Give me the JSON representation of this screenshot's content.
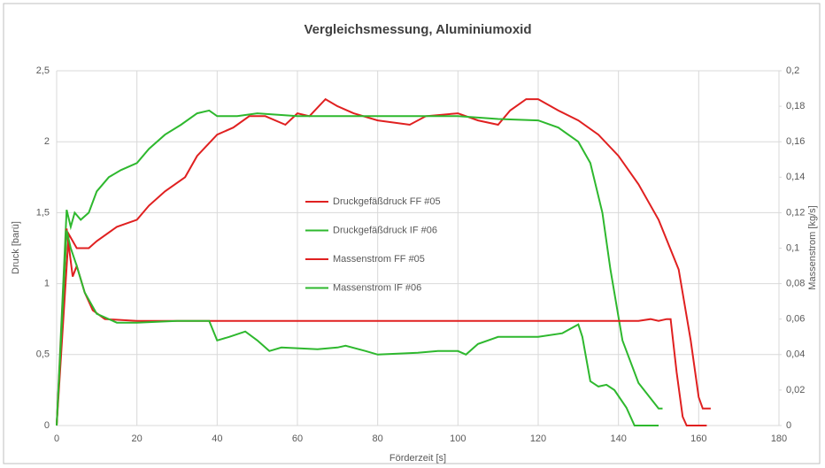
{
  "chart_data": {
    "type": "line",
    "title": "Vergleichsmessung, Aluminiumoxid",
    "xlabel": "Förderzeit [s]",
    "ylabel": "Druck [barü]",
    "y2label": "Massenstrom [kg/s]",
    "xlim": [
      0,
      180
    ],
    "xticks": [
      0,
      20,
      40,
      60,
      80,
      100,
      120,
      140,
      160,
      180
    ],
    "ylim": [
      0,
      2.5
    ],
    "yticks": [
      0,
      {
        "value": 0.5,
        "label": "0,5"
      },
      1,
      {
        "value": 1.5,
        "label": "1,5"
      },
      2,
      {
        "value": 2.5,
        "label": "2,5"
      }
    ],
    "y2lim": [
      0,
      0.2
    ],
    "y2ticks": [
      0,
      {
        "value": 0.02,
        "label": "0,02"
      },
      {
        "value": 0.04,
        "label": "0,04"
      },
      {
        "value": 0.06,
        "label": "0,06"
      },
      {
        "value": 0.08,
        "label": "0,08"
      },
      {
        "value": 0.1,
        "label": "0,1"
      },
      {
        "value": 0.12,
        "label": "0,12"
      },
      {
        "value": 0.14,
        "label": "0,14"
      },
      {
        "value": 0.16,
        "label": "0,16"
      },
      {
        "value": 0.18,
        "label": "0,18"
      },
      {
        "value": 0.2,
        "label": "0,2"
      }
    ],
    "grid": true,
    "legend": "center",
    "series": [
      {
        "name": "Druckgefäßdruck FF #05",
        "color": "#e02020",
        "axis": "y",
        "x": [
          0,
          3,
          5,
          8,
          10,
          15,
          20,
          23,
          27,
          32,
          35,
          40,
          44,
          48,
          52,
          57,
          60,
          63,
          67,
          70,
          74,
          80,
          88,
          92,
          100,
          105,
          110,
          113,
          117,
          120,
          125,
          130,
          135,
          140,
          145,
          150,
          155,
          158,
          160,
          161,
          163
        ],
        "values": [
          0,
          1.35,
          1.25,
          1.25,
          1.3,
          1.4,
          1.45,
          1.55,
          1.65,
          1.75,
          1.9,
          2.05,
          2.1,
          2.18,
          2.18,
          2.12,
          2.2,
          2.18,
          2.3,
          2.25,
          2.2,
          2.15,
          2.12,
          2.18,
          2.2,
          2.15,
          2.12,
          2.22,
          2.3,
          2.3,
          2.22,
          2.15,
          2.05,
          1.9,
          1.7,
          1.45,
          1.1,
          0.6,
          0.2,
          0.12,
          0.12
        ]
      },
      {
        "name": "Druckgefäßdruck IF #06",
        "color": "#2eb82e",
        "axis": "y",
        "x": [
          0,
          2.5,
          3.5,
          4.5,
          6,
          8,
          10,
          13,
          16,
          20,
          23,
          27,
          31,
          35,
          38,
          40,
          45,
          50,
          60,
          70,
          80,
          100,
          110,
          120,
          125,
          130,
          133,
          136,
          138,
          141,
          145,
          150,
          151
        ],
        "values": [
          0,
          1.52,
          1.4,
          1.5,
          1.45,
          1.5,
          1.65,
          1.75,
          1.8,
          1.85,
          1.95,
          2.05,
          2.12,
          2.2,
          2.22,
          2.18,
          2.18,
          2.2,
          2.18,
          2.18,
          2.18,
          2.18,
          2.16,
          2.15,
          2.1,
          2.0,
          1.85,
          1.5,
          1.1,
          0.6,
          0.3,
          0.12,
          0.12
        ]
      },
      {
        "name": "Massenstrom FF #05",
        "color": "#e02020",
        "axis": "y2",
        "x": [
          0,
          2.5,
          4,
          5,
          7,
          9,
          12,
          20,
          40,
          80,
          120,
          145,
          148,
          150,
          152,
          153,
          154.5,
          156,
          157,
          162
        ],
        "values": [
          0,
          0.111,
          0.084,
          0.09,
          0.075,
          0.065,
          0.06,
          0.059,
          0.059,
          0.059,
          0.059,
          0.059,
          0.06,
          0.059,
          0.06,
          0.06,
          0.03,
          0.005,
          0,
          0
        ]
      },
      {
        "name": "Massenstrom IF #06",
        "color": "#2eb82e",
        "axis": "y2",
        "x": [
          0,
          2.5,
          3.5,
          5,
          7,
          10,
          15,
          20,
          30,
          38,
          40,
          43,
          47,
          50,
          53,
          56,
          65,
          70,
          72,
          77,
          80,
          90,
          95,
          100,
          102,
          105,
          110,
          120,
          126,
          130,
          131,
          133,
          135,
          137,
          139,
          142,
          144,
          150
        ],
        "values": [
          0,
          0.11,
          0.1,
          0.09,
          0.075,
          0.063,
          0.058,
          0.058,
          0.059,
          0.059,
          0.048,
          0.05,
          0.053,
          0.048,
          0.042,
          0.044,
          0.043,
          0.044,
          0.045,
          0.042,
          0.04,
          0.041,
          0.042,
          0.042,
          0.04,
          0.046,
          0.05,
          0.05,
          0.052,
          0.057,
          0.05,
          0.025,
          0.022,
          0.023,
          0.02,
          0.01,
          0,
          0
        ]
      }
    ]
  }
}
